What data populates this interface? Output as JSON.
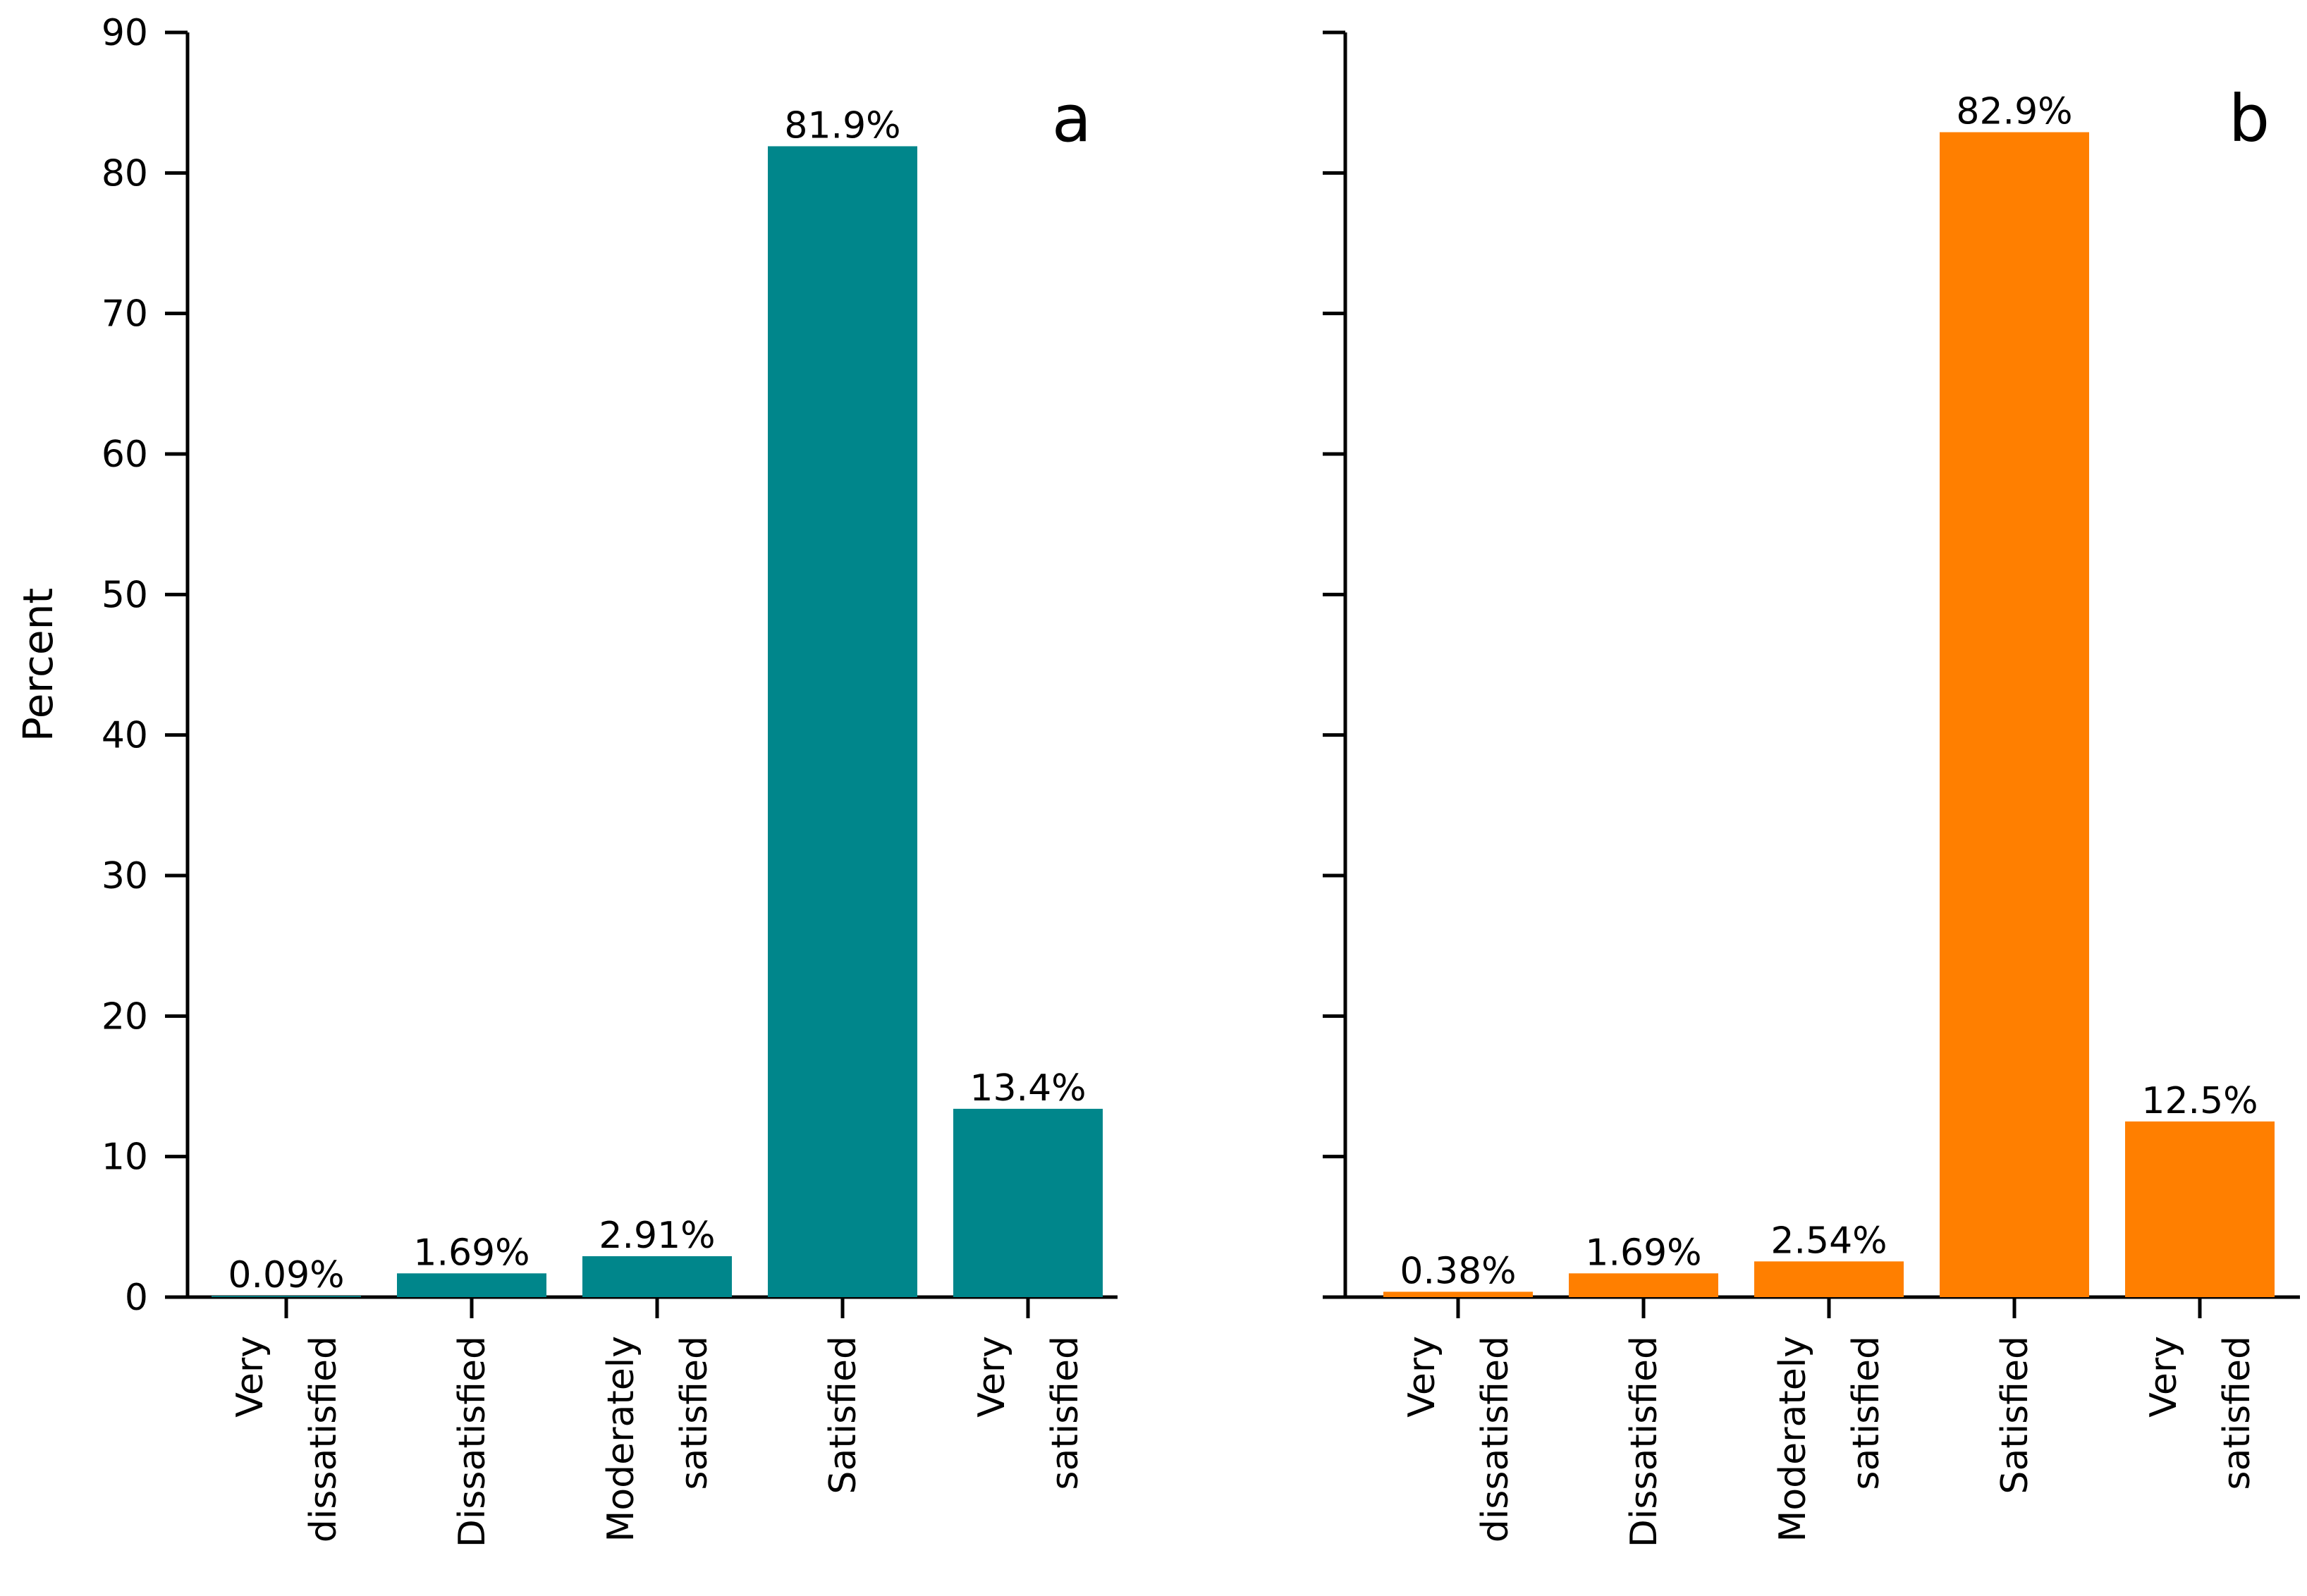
{
  "chart_data": [
    {
      "type": "bar",
      "panel_label": "a",
      "categories": [
        [
          "Very",
          "dissatisfied"
        ],
        [
          "Dissatisfied"
        ],
        [
          "Moderately",
          "satisfied"
        ],
        [
          "Satisfied"
        ],
        [
          "Very",
          "satisfied"
        ]
      ],
      "values": [
        0.09,
        1.69,
        2.91,
        81.9,
        13.4
      ],
      "data_labels": [
        "0.09%",
        "1.69%",
        "2.91%",
        "81.9%",
        "13.4%"
      ],
      "ylabel": "Percent",
      "ylim": [
        0,
        90
      ],
      "yticks": [
        0,
        10,
        20,
        30,
        40,
        50,
        60,
        70,
        80,
        90
      ],
      "color": "#00868B"
    },
    {
      "type": "bar",
      "panel_label": "b",
      "categories": [
        [
          "Very",
          "dissatisfied"
        ],
        [
          "Dissatisfied"
        ],
        [
          "Moderately",
          "satisfied"
        ],
        [
          "Satisfied"
        ],
        [
          "Very",
          "satisfied"
        ]
      ],
      "values": [
        0.38,
        1.69,
        2.54,
        82.9,
        12.5
      ],
      "data_labels": [
        "0.38%",
        "1.69%",
        "2.54%",
        "82.9%",
        "12.5%"
      ],
      "ylabel": "",
      "ylim": [
        0,
        90
      ],
      "yticks": [
        0,
        10,
        20,
        30,
        40,
        50,
        60,
        70,
        80,
        90
      ],
      "color": "#FF7F00"
    }
  ]
}
